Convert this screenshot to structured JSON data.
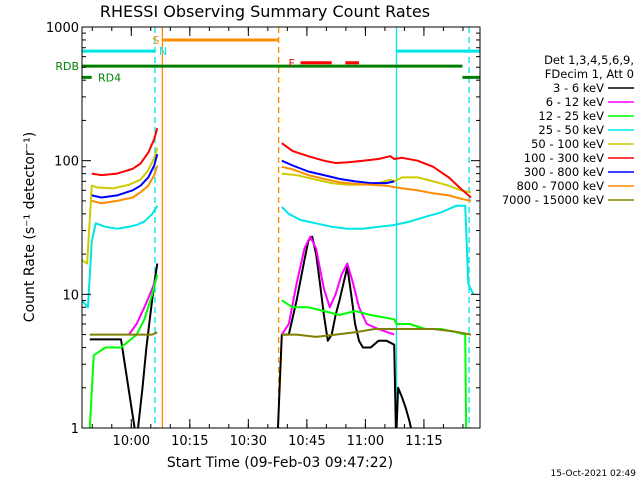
{
  "chart_data": {
    "type": "line",
    "title": "RHESSI Observing Summary Count Rates",
    "xlabel": "Start Time (09-Feb-03 09:47:22)",
    "ylabel": "Count Rate (s⁻¹ detector⁻¹)",
    "x_unit": "minutes after 09:47:22",
    "xlim": [
      0,
      102
    ],
    "yscale": "log",
    "ylim": [
      1,
      1000
    ],
    "x_tick_labels": [
      {
        "x": 12.63,
        "label": "10:00"
      },
      {
        "x": 27.63,
        "label": "10:15"
      },
      {
        "x": 42.63,
        "label": "10:30"
      },
      {
        "x": 57.63,
        "label": "10:45"
      },
      {
        "x": 72.63,
        "label": "11:00"
      },
      {
        "x": 87.63,
        "label": "11:15"
      }
    ],
    "y_tick_labels": [
      {
        "y": 1,
        "label": "1"
      },
      {
        "y": 10,
        "label": "10"
      },
      {
        "y": 100,
        "label": "100"
      },
      {
        "y": 1000,
        "label": "1000"
      }
    ],
    "legend": {
      "placement": "right",
      "header": [
        "Det 1,3,4,5,6,9,",
        "FDecim 1, Att 0"
      ]
    },
    "footer_date": "15-Oct-2021 02:49",
    "vertical_lines": [
      {
        "x": 18.7,
        "color": "#00e5e5",
        "style": "dashed"
      },
      {
        "x": 20.6,
        "color": "#ff8c00",
        "style": "solid"
      },
      {
        "x": 50.4,
        "color": "#ff8c00",
        "style": "dashed"
      },
      {
        "x": 80.6,
        "color": "#00e5e5",
        "style": "solid"
      },
      {
        "x": 99.2,
        "color": "#00e5e5",
        "style": "dashed"
      }
    ],
    "flags": [
      {
        "label": "S",
        "color": "#ff8c00",
        "y": 800,
        "segments": [
          [
            20.6,
            50.4
          ]
        ]
      },
      {
        "label": "N",
        "color": "#00e5e5",
        "y": 660,
        "segments": [
          [
            0,
            18.7
          ],
          [
            80.6,
            102
          ]
        ]
      },
      {
        "label": "F",
        "color": "#ff0000",
        "y": 540,
        "segments": [
          [
            56,
            64
          ],
          [
            67.5,
            71
          ]
        ]
      },
      {
        "label": "RDB",
        "color": "#008000",
        "y": 510,
        "segments": [
          [
            0,
            97.5
          ]
        ]
      },
      {
        "label": "RD4",
        "color": "#008000",
        "y": 420,
        "segments": [
          [
            0,
            2.5
          ],
          [
            97.5,
            102
          ]
        ]
      }
    ],
    "series": [
      {
        "name": "3 - 6 keV",
        "color": "#000000",
        "points": [
          [
            2,
            4.6
          ],
          [
            10,
            4.6
          ],
          [
            14,
            0.8
          ],
          [
            15.5,
            2.0
          ],
          [
            16.5,
            4.0
          ],
          [
            17.5,
            7.0
          ],
          [
            18.5,
            12.0
          ],
          [
            19.3,
            17.0
          ],
          [
            49.8,
            0.5
          ],
          [
            51.2,
            5.0
          ],
          [
            53,
            5.0
          ],
          [
            55,
            9.0
          ],
          [
            57,
            18.0
          ],
          [
            58,
            25.0
          ],
          [
            59,
            27.0
          ],
          [
            60,
            20.0
          ],
          [
            61,
            12.0
          ],
          [
            62,
            7.0
          ],
          [
            63,
            4.5
          ],
          [
            64,
            5.0
          ],
          [
            65,
            7.0
          ],
          [
            66,
            9.0
          ],
          [
            67,
            12.0
          ],
          [
            68,
            16.0
          ],
          [
            69,
            10.0
          ],
          [
            70,
            6.0
          ],
          [
            71,
            4.5
          ],
          [
            72,
            4.0
          ],
          [
            74,
            4.0
          ],
          [
            76,
            4.5
          ],
          [
            78,
            4.5
          ],
          [
            80,
            4.2
          ],
          [
            80.5,
            0.8
          ],
          [
            81,
            2.0
          ],
          [
            82,
            1.7
          ],
          [
            83,
            1.4
          ],
          [
            84,
            1.1
          ],
          [
            85,
            0.8
          ]
        ]
      },
      {
        "name": "6 - 12 keV",
        "color": "#ff00ff",
        "points": [
          [
            12,
            5.0
          ],
          [
            14,
            6.0
          ],
          [
            16,
            8.0
          ],
          [
            18,
            11.0
          ],
          [
            19.3,
            14.0
          ],
          [
            51.2,
            5.0
          ],
          [
            53,
            6.0
          ],
          [
            55,
            12.0
          ],
          [
            57,
            22.0
          ],
          [
            58.5,
            27.0
          ],
          [
            60,
            22.0
          ],
          [
            62,
            11.0
          ],
          [
            63.5,
            8.0
          ],
          [
            65,
            10.0
          ],
          [
            66.5,
            14.0
          ],
          [
            68,
            17.0
          ],
          [
            69.5,
            12.0
          ],
          [
            71,
            8.0
          ],
          [
            73,
            6.0
          ],
          [
            76,
            5.5
          ],
          [
            80,
            5.0
          ]
        ]
      },
      {
        "name": "12 - 25 keV",
        "color": "#00ff00",
        "points": [
          [
            2,
            1.0
          ],
          [
            3,
            3.5
          ],
          [
            6,
            4.0
          ],
          [
            10,
            4.0
          ],
          [
            14,
            5.0
          ],
          [
            16,
            6.5
          ],
          [
            18,
            10.0
          ],
          [
            19.3,
            14.0
          ],
          [
            51.2,
            9.0
          ],
          [
            54,
            8.0
          ],
          [
            58,
            8.0
          ],
          [
            62,
            7.5
          ],
          [
            66,
            7.0
          ],
          [
            70,
            7.5
          ],
          [
            74,
            7.0
          ],
          [
            80,
            6.5
          ],
          [
            80.6,
            6.0
          ],
          [
            84,
            6.0
          ],
          [
            88,
            5.5
          ],
          [
            92,
            5.5
          ],
          [
            96,
            5.2
          ],
          [
            98.2,
            5.0
          ],
          [
            98.5,
            0.8
          ]
        ]
      },
      {
        "name": "25 - 50 keV",
        "color": "#00e5e5",
        "points": [
          [
            0,
            9.0
          ],
          [
            1.5,
            8.0
          ],
          [
            2.5,
            25.0
          ],
          [
            3.5,
            34.0
          ],
          [
            6,
            32.0
          ],
          [
            9,
            31.0
          ],
          [
            12,
            32.0
          ],
          [
            14,
            33.0
          ],
          [
            16,
            35.0
          ],
          [
            18,
            40.0
          ],
          [
            19.3,
            46.0
          ],
          [
            51.2,
            45.0
          ],
          [
            53,
            40.0
          ],
          [
            56,
            36.0
          ],
          [
            60,
            34.0
          ],
          [
            64,
            32.0
          ],
          [
            68,
            31.0
          ],
          [
            72,
            31.0
          ],
          [
            76,
            32.0
          ],
          [
            80,
            33.0
          ],
          [
            84,
            35.0
          ],
          [
            88,
            38.0
          ],
          [
            92,
            41.0
          ],
          [
            96,
            46.0
          ],
          [
            98.2,
            46.0
          ],
          [
            99,
            12.0
          ],
          [
            100.3,
            10.0
          ]
        ]
      },
      {
        "name": "50 - 100 keV",
        "color": "#cccc00",
        "points": [
          [
            0,
            18.0
          ],
          [
            1.3,
            17.0
          ],
          [
            2.5,
            65.0
          ],
          [
            4,
            63.0
          ],
          [
            8,
            62.0
          ],
          [
            12,
            66.0
          ],
          [
            15,
            72.0
          ],
          [
            17,
            85.0
          ],
          [
            18.5,
            105.0
          ],
          [
            19.3,
            125.0
          ],
          [
            51.2,
            80.0
          ],
          [
            55,
            78.0
          ],
          [
            60,
            72.0
          ],
          [
            64,
            68.0
          ],
          [
            68,
            66.0
          ],
          [
            72,
            66.0
          ],
          [
            76,
            68.0
          ],
          [
            79,
            72.0
          ],
          [
            80,
            70.0
          ],
          [
            82,
            75.0
          ],
          [
            86,
            75.0
          ],
          [
            90,
            70.0
          ],
          [
            94,
            65.0
          ],
          [
            97,
            60.0
          ],
          [
            99.7,
            58.0
          ]
        ]
      },
      {
        "name": "100 - 300 keV",
        "color": "#ff0000",
        "points": [
          [
            2.5,
            80.0
          ],
          [
            5,
            78.0
          ],
          [
            9,
            80.0
          ],
          [
            13,
            87.0
          ],
          [
            15,
            95.0
          ],
          [
            17,
            115.0
          ],
          [
            18.5,
            145.0
          ],
          [
            19.3,
            175.0
          ],
          [
            51.2,
            135.0
          ],
          [
            54,
            118.0
          ],
          [
            58,
            108.0
          ],
          [
            62,
            100.0
          ],
          [
            65,
            96.0
          ],
          [
            68,
            97.0
          ],
          [
            72,
            100.0
          ],
          [
            76,
            103.0
          ],
          [
            79,
            108.0
          ],
          [
            80,
            103.0
          ],
          [
            82,
            105.0
          ],
          [
            86,
            100.0
          ],
          [
            90,
            90.0
          ],
          [
            94,
            75.0
          ],
          [
            97,
            62.0
          ],
          [
            99.7,
            53.0
          ]
        ]
      },
      {
        "name": "300 - 800 keV",
        "color": "#0000ff",
        "points": [
          [
            2.5,
            55.0
          ],
          [
            5,
            53.0
          ],
          [
            9,
            55.0
          ],
          [
            13,
            60.0
          ],
          [
            15,
            65.0
          ],
          [
            17,
            75.0
          ],
          [
            18.5,
            92.0
          ],
          [
            19.3,
            112.0
          ],
          [
            51.2,
            100.0
          ],
          [
            54,
            92.0
          ],
          [
            58,
            83.0
          ],
          [
            62,
            78.0
          ],
          [
            66,
            73.0
          ],
          [
            70,
            70.0
          ],
          [
            74,
            68.0
          ],
          [
            78,
            68.0
          ],
          [
            80,
            70.0
          ]
        ]
      },
      {
        "name": "800 - 7000 keV",
        "color": "#ff8c00",
        "points": [
          [
            2.5,
            50.0
          ],
          [
            5,
            48.0
          ],
          [
            9,
            50.0
          ],
          [
            13,
            53.0
          ],
          [
            15,
            58.0
          ],
          [
            17,
            65.0
          ],
          [
            18.5,
            78.0
          ],
          [
            19.3,
            92.0
          ],
          [
            51.2,
            90.0
          ],
          [
            54,
            86.0
          ],
          [
            58,
            78.0
          ],
          [
            62,
            73.0
          ],
          [
            66,
            69.0
          ],
          [
            70,
            67.0
          ],
          [
            74,
            66.0
          ],
          [
            78,
            65.0
          ],
          [
            82,
            62.0
          ],
          [
            86,
            60.0
          ],
          [
            90,
            57.0
          ],
          [
            94,
            55.0
          ],
          [
            97,
            52.0
          ],
          [
            99.7,
            50.0
          ]
        ]
      },
      {
        "name": "7000 - 15000 keV",
        "color": "#808000",
        "points": [
          [
            2,
            5.0
          ],
          [
            6,
            5.0
          ],
          [
            10,
            5.0
          ],
          [
            14,
            5.0
          ],
          [
            18,
            5.0
          ],
          [
            19.3,
            5.2
          ],
          [
            51.2,
            5.0
          ],
          [
            55,
            5.0
          ],
          [
            60,
            4.8
          ],
          [
            65,
            5.0
          ],
          [
            70,
            5.2
          ],
          [
            75,
            5.5
          ],
          [
            80,
            5.5
          ],
          [
            85,
            5.5
          ],
          [
            90,
            5.5
          ],
          [
            95,
            5.3
          ],
          [
            99.7,
            5.0
          ]
        ]
      }
    ]
  }
}
